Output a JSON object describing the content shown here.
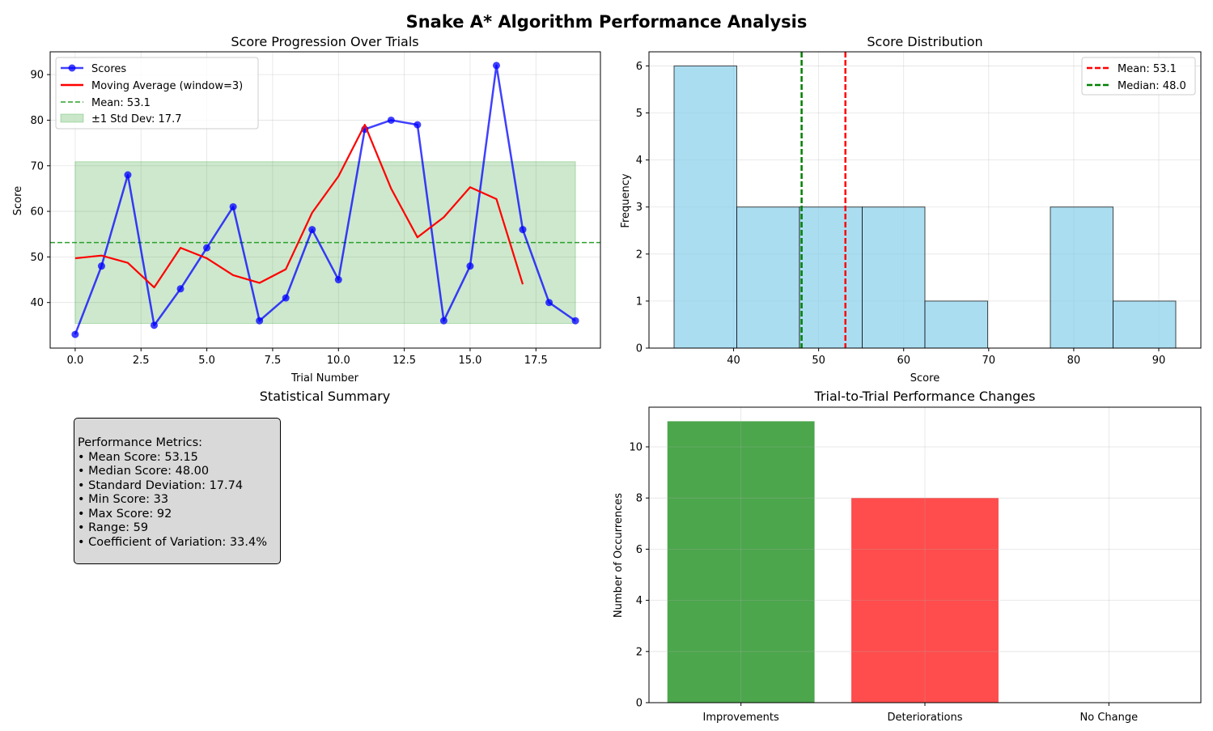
{
  "figure_title": "Snake A* Algorithm Performance Analysis",
  "colors": {
    "scores": "#0000ff",
    "moving_avg": "#ff0000",
    "mean_line": "#2ca02c",
    "std_band": "#2ca02c",
    "hist_fill": "#87ceeb",
    "mean_vline": "#ff0000",
    "median_vline": "#008000",
    "improvements": "#008000",
    "deteriorations": "#ff0000",
    "summary_box": "#d9d9d9"
  },
  "chart_data": [
    {
      "type": "line",
      "title": "Score Progression Over Trials",
      "xlabel": "Trial Number",
      "ylabel": "Score",
      "xlim": [
        -0.95,
        19.95
      ],
      "ylim": [
        30.0,
        95.0
      ],
      "xticks": [
        "0.0",
        "2.5",
        "5.0",
        "7.5",
        "10.0",
        "12.5",
        "15.0",
        "17.5"
      ],
      "yticks": [
        "40",
        "50",
        "60",
        "70",
        "80",
        "90"
      ],
      "grid": true,
      "legend_position": "upper-left",
      "series": [
        {
          "name": "Scores",
          "x": [
            0,
            1,
            2,
            3,
            4,
            5,
            6,
            7,
            8,
            9,
            10,
            11,
            12,
            13,
            14,
            15,
            16,
            17,
            18,
            19
          ],
          "values": [
            33,
            48,
            68,
            35,
            43,
            52,
            61,
            36,
            41,
            56,
            45,
            78,
            80,
            79,
            36,
            48,
            92,
            56,
            40,
            36
          ]
        },
        {
          "name": "Moving Average (window=3)",
          "x": [
            0,
            1,
            2,
            3,
            4,
            5,
            6,
            7,
            8,
            9,
            10,
            11,
            12,
            13,
            14,
            15,
            16,
            17
          ],
          "values": [
            49.7,
            50.3,
            48.7,
            43.3,
            52.0,
            49.7,
            46.0,
            44.3,
            47.3,
            59.7,
            67.7,
            79.0,
            65.0,
            54.3,
            58.7,
            65.3,
            62.7,
            44.0
          ]
        }
      ],
      "mean_label": "Mean: 53.1",
      "mean_value": 53.15,
      "std_label": "±1 Std Dev: 17.7",
      "std_range": [
        35.41,
        70.89
      ],
      "std_x_range": [
        0,
        19
      ]
    },
    {
      "type": "bar",
      "subtype": "histogram",
      "title": "Score Distribution",
      "xlabel": "Score",
      "ylabel": "Frequency",
      "xlim": [
        30.05,
        94.95
      ],
      "ylim": [
        0,
        6.3
      ],
      "xticks": [
        "40",
        "50",
        "60",
        "70",
        "80",
        "90"
      ],
      "yticks": [
        "0",
        "1",
        "2",
        "3",
        "4",
        "5",
        "6"
      ],
      "grid": true,
      "legend_position": "upper-right",
      "bins": [
        33.0,
        40.375,
        47.75,
        55.125,
        62.5,
        69.875,
        77.25,
        84.625,
        92.0
      ],
      "counts": [
        6,
        3,
        3,
        3,
        1,
        0,
        3,
        1
      ],
      "mean_label": "Mean: 53.1",
      "mean_value": 53.15,
      "median_label": "Median: 48.0",
      "median_value": 48.0
    },
    {
      "type": "bar",
      "title": "Trial-to-Trial Performance Changes",
      "ylabel": "Number of Occurrences",
      "categories": [
        "Improvements",
        "Deteriorations",
        "No Change"
      ],
      "values": [
        11,
        8,
        0
      ],
      "ylim": [
        0,
        11.55
      ],
      "yticks": [
        "0",
        "2",
        "4",
        "6",
        "8",
        "10"
      ],
      "grid": true
    }
  ],
  "summary": {
    "title": "Statistical Summary",
    "heading": "Performance Metrics:",
    "lines": [
      "• Mean Score: 53.15",
      "• Median Score: 48.00",
      "• Standard Deviation: 17.74",
      "• Min Score: 33",
      "• Max Score: 92",
      "• Range: 59",
      "• Coefficient of Variation: 33.4%"
    ]
  }
}
